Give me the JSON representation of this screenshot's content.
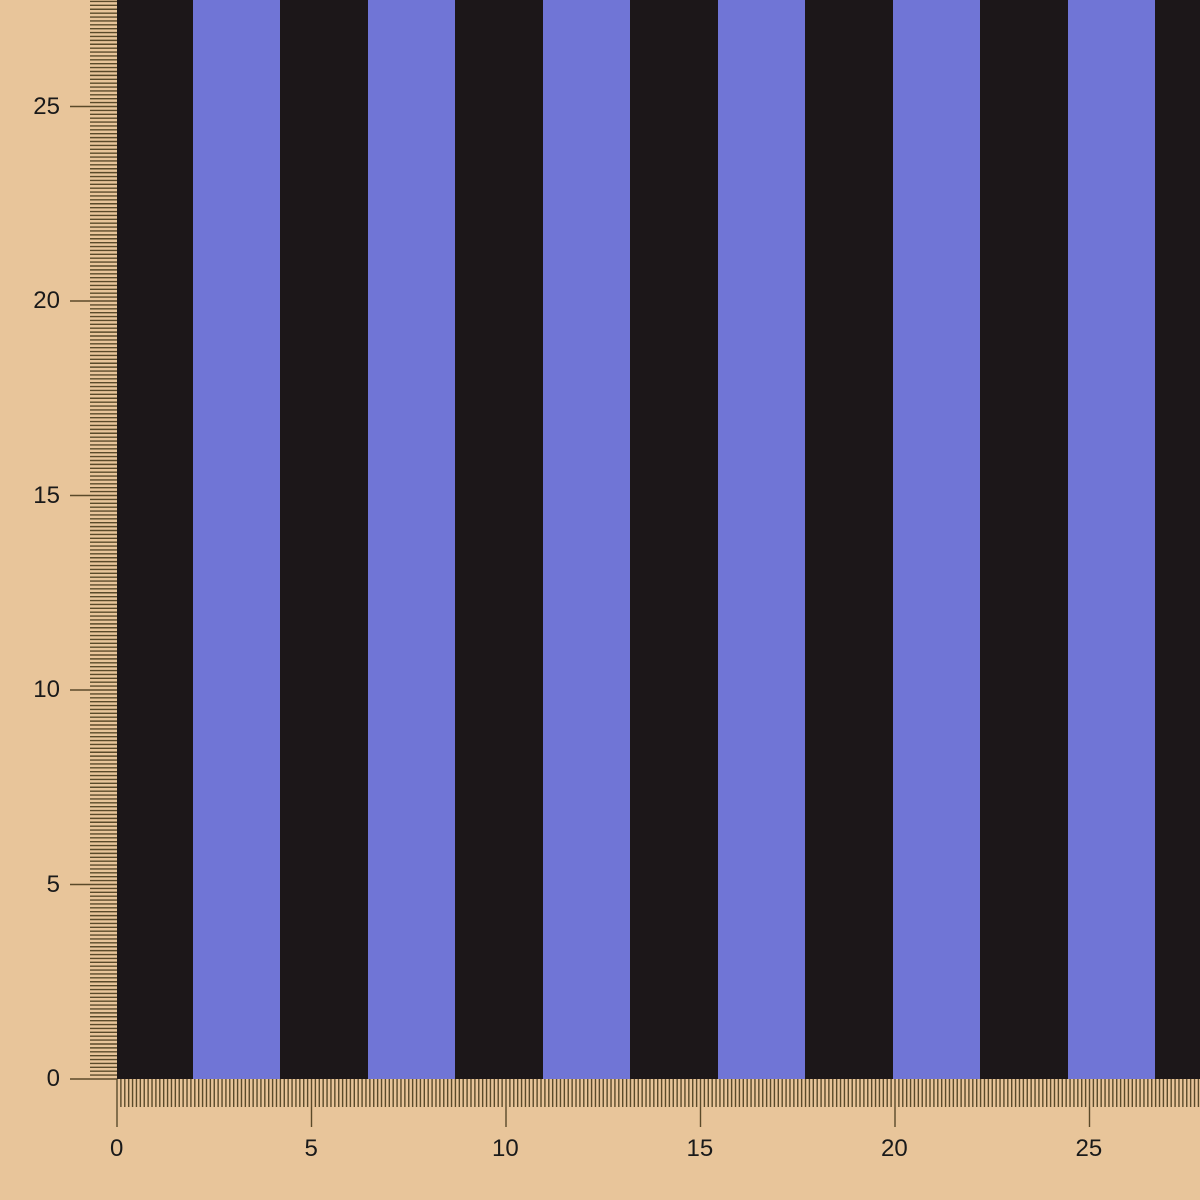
{
  "fabric": {
    "pattern": "vertical stripes",
    "colors": {
      "dark": "#1c1719",
      "light": "#7075d6"
    },
    "stripe_width_cm": 2.25
  },
  "ruler": {
    "unit": "cm",
    "color": "#5a4a2a",
    "background": "#e8c59a",
    "vertical_labels": [
      "0",
      "5",
      "10",
      "15",
      "20",
      "25"
    ],
    "horizontal_labels": [
      "0",
      "5",
      "10",
      "15",
      "20",
      "25"
    ]
  }
}
